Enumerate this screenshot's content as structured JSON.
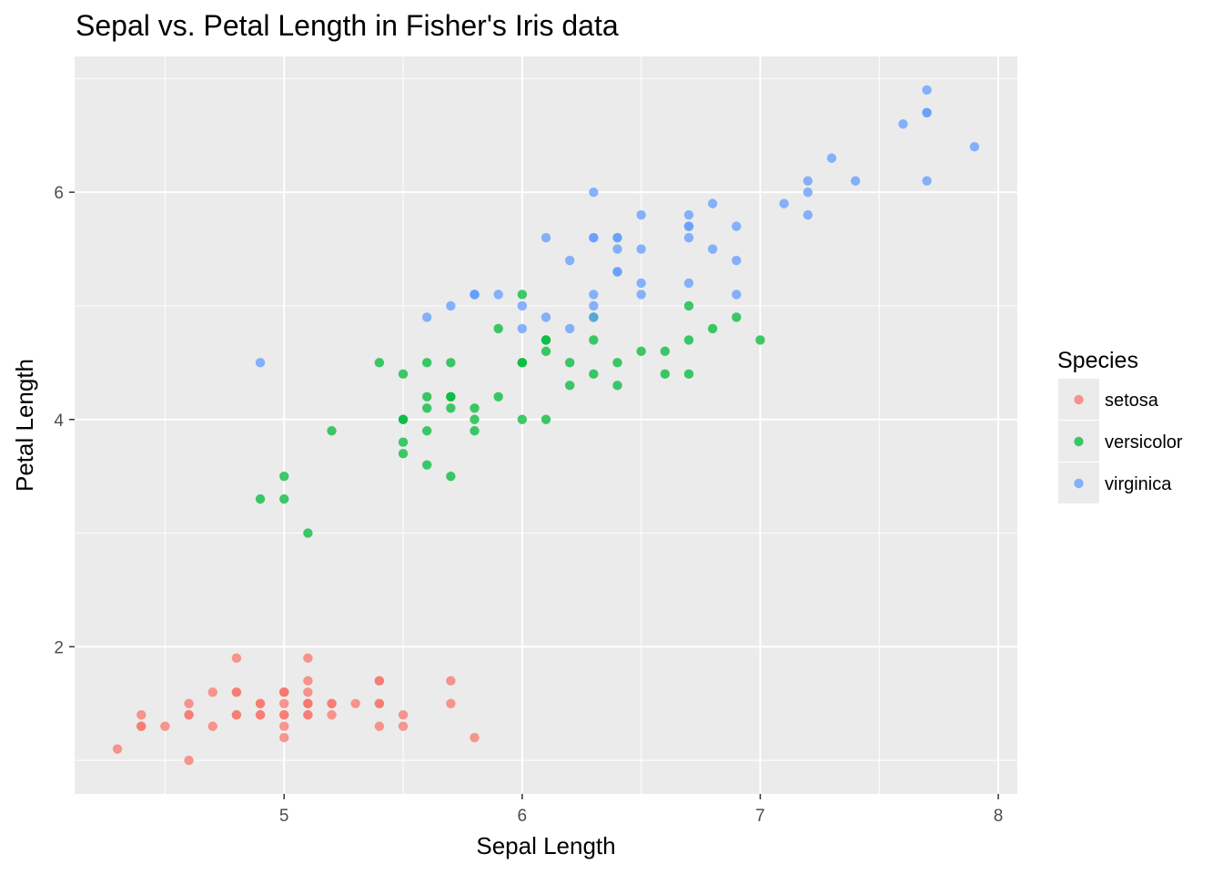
{
  "chart_data": {
    "type": "scatter",
    "title": "Sepal vs. Petal Length in Fisher's Iris data",
    "xlabel": "Sepal Length",
    "ylabel": "Petal Length",
    "xlim": [
      4.12,
      8.08
    ],
    "ylim": [
      0.705,
      7.195
    ],
    "x_ticks": [
      5,
      6,
      7,
      8
    ],
    "y_ticks": [
      2,
      4,
      6
    ],
    "x_tick_labels": [
      "5",
      "6",
      "7",
      "8"
    ],
    "y_tick_labels": [
      "2",
      "4",
      "6"
    ],
    "grid": true,
    "legend": {
      "title": "Species",
      "position": "right"
    },
    "series": [
      {
        "name": "setosa",
        "color": "#F8766D",
        "points": [
          [
            5.1,
            1.4
          ],
          [
            4.9,
            1.4
          ],
          [
            4.7,
            1.3
          ],
          [
            4.6,
            1.5
          ],
          [
            5.0,
            1.4
          ],
          [
            5.4,
            1.7
          ],
          [
            4.6,
            1.4
          ],
          [
            5.0,
            1.5
          ],
          [
            4.4,
            1.4
          ],
          [
            4.9,
            1.5
          ],
          [
            5.4,
            1.5
          ],
          [
            4.8,
            1.6
          ],
          [
            4.8,
            1.4
          ],
          [
            4.3,
            1.1
          ],
          [
            5.8,
            1.2
          ],
          [
            5.7,
            1.5
          ],
          [
            5.4,
            1.3
          ],
          [
            5.1,
            1.4
          ],
          [
            5.7,
            1.7
          ],
          [
            5.1,
            1.5
          ],
          [
            5.4,
            1.7
          ],
          [
            5.1,
            1.5
          ],
          [
            4.6,
            1.0
          ],
          [
            5.1,
            1.7
          ],
          [
            4.8,
            1.9
          ],
          [
            5.0,
            1.6
          ],
          [
            5.0,
            1.6
          ],
          [
            5.2,
            1.5
          ],
          [
            5.2,
            1.4
          ],
          [
            4.7,
            1.6
          ],
          [
            4.8,
            1.6
          ],
          [
            5.4,
            1.5
          ],
          [
            5.2,
            1.5
          ],
          [
            5.5,
            1.4
          ],
          [
            4.9,
            1.5
          ],
          [
            5.0,
            1.2
          ],
          [
            5.5,
            1.3
          ],
          [
            4.9,
            1.4
          ],
          [
            4.4,
            1.3
          ],
          [
            5.1,
            1.5
          ],
          [
            5.0,
            1.3
          ],
          [
            4.5,
            1.3
          ],
          [
            4.4,
            1.3
          ],
          [
            5.0,
            1.6
          ],
          [
            5.1,
            1.9
          ],
          [
            4.8,
            1.4
          ],
          [
            5.1,
            1.6
          ],
          [
            4.6,
            1.4
          ],
          [
            5.3,
            1.5
          ],
          [
            5.0,
            1.4
          ]
        ]
      },
      {
        "name": "versicolor",
        "color": "#00BA38",
        "points": [
          [
            7.0,
            4.7
          ],
          [
            6.4,
            4.5
          ],
          [
            6.9,
            4.9
          ],
          [
            5.5,
            4.0
          ],
          [
            6.5,
            4.6
          ],
          [
            5.7,
            4.5
          ],
          [
            6.3,
            4.7
          ],
          [
            4.9,
            3.3
          ],
          [
            6.6,
            4.6
          ],
          [
            5.2,
            3.9
          ],
          [
            5.0,
            3.5
          ],
          [
            5.9,
            4.2
          ],
          [
            6.0,
            4.0
          ],
          [
            6.1,
            4.7
          ],
          [
            5.6,
            3.6
          ],
          [
            6.7,
            4.4
          ],
          [
            5.6,
            4.5
          ],
          [
            5.8,
            4.1
          ],
          [
            6.2,
            4.5
          ],
          [
            5.6,
            3.9
          ],
          [
            5.9,
            4.8
          ],
          [
            6.1,
            4.0
          ],
          [
            6.3,
            4.9
          ],
          [
            6.1,
            4.7
          ],
          [
            6.4,
            4.3
          ],
          [
            6.6,
            4.4
          ],
          [
            6.8,
            4.8
          ],
          [
            6.7,
            5.0
          ],
          [
            6.0,
            4.5
          ],
          [
            5.7,
            3.5
          ],
          [
            5.5,
            3.8
          ],
          [
            5.5,
            3.7
          ],
          [
            5.8,
            3.9
          ],
          [
            6.0,
            5.1
          ],
          [
            5.4,
            4.5
          ],
          [
            6.0,
            4.5
          ],
          [
            6.7,
            4.7
          ],
          [
            6.3,
            4.4
          ],
          [
            5.6,
            4.1
          ],
          [
            5.5,
            4.0
          ],
          [
            5.5,
            4.4
          ],
          [
            6.1,
            4.6
          ],
          [
            5.8,
            4.0
          ],
          [
            5.0,
            3.3
          ],
          [
            5.6,
            4.2
          ],
          [
            5.7,
            4.2
          ],
          [
            5.7,
            4.2
          ],
          [
            6.2,
            4.3
          ],
          [
            5.1,
            3.0
          ],
          [
            5.7,
            4.1
          ]
        ]
      },
      {
        "name": "virginica",
        "color": "#619CFF",
        "points": [
          [
            6.3,
            6.0
          ],
          [
            5.8,
            5.1
          ],
          [
            7.1,
            5.9
          ],
          [
            6.3,
            5.6
          ],
          [
            6.5,
            5.8
          ],
          [
            7.6,
            6.6
          ],
          [
            4.9,
            4.5
          ],
          [
            7.3,
            6.3
          ],
          [
            6.7,
            5.8
          ],
          [
            7.2,
            6.1
          ],
          [
            6.5,
            5.1
          ],
          [
            6.4,
            5.3
          ],
          [
            6.8,
            5.5
          ],
          [
            5.7,
            5.0
          ],
          [
            5.8,
            5.1
          ],
          [
            6.4,
            5.3
          ],
          [
            6.5,
            5.5
          ],
          [
            7.7,
            6.7
          ],
          [
            7.7,
            6.9
          ],
          [
            6.0,
            5.0
          ],
          [
            6.9,
            5.7
          ],
          [
            5.6,
            4.9
          ],
          [
            7.7,
            6.7
          ],
          [
            6.3,
            4.9
          ],
          [
            6.7,
            5.7
          ],
          [
            7.2,
            6.0
          ],
          [
            6.2,
            4.8
          ],
          [
            6.1,
            4.9
          ],
          [
            6.4,
            5.6
          ],
          [
            7.2,
            5.8
          ],
          [
            7.4,
            6.1
          ],
          [
            7.9,
            6.4
          ],
          [
            6.4,
            5.6
          ],
          [
            6.3,
            5.1
          ],
          [
            6.1,
            5.6
          ],
          [
            7.7,
            6.1
          ],
          [
            6.3,
            5.6
          ],
          [
            6.4,
            5.5
          ],
          [
            6.0,
            4.8
          ],
          [
            6.9,
            5.4
          ],
          [
            6.7,
            5.6
          ],
          [
            6.9,
            5.1
          ],
          [
            5.8,
            5.1
          ],
          [
            6.8,
            5.9
          ],
          [
            6.7,
            5.7
          ],
          [
            6.7,
            5.2
          ],
          [
            6.3,
            5.0
          ],
          [
            6.5,
            5.2
          ],
          [
            6.2,
            5.4
          ],
          [
            5.9,
            5.1
          ]
        ]
      }
    ]
  }
}
